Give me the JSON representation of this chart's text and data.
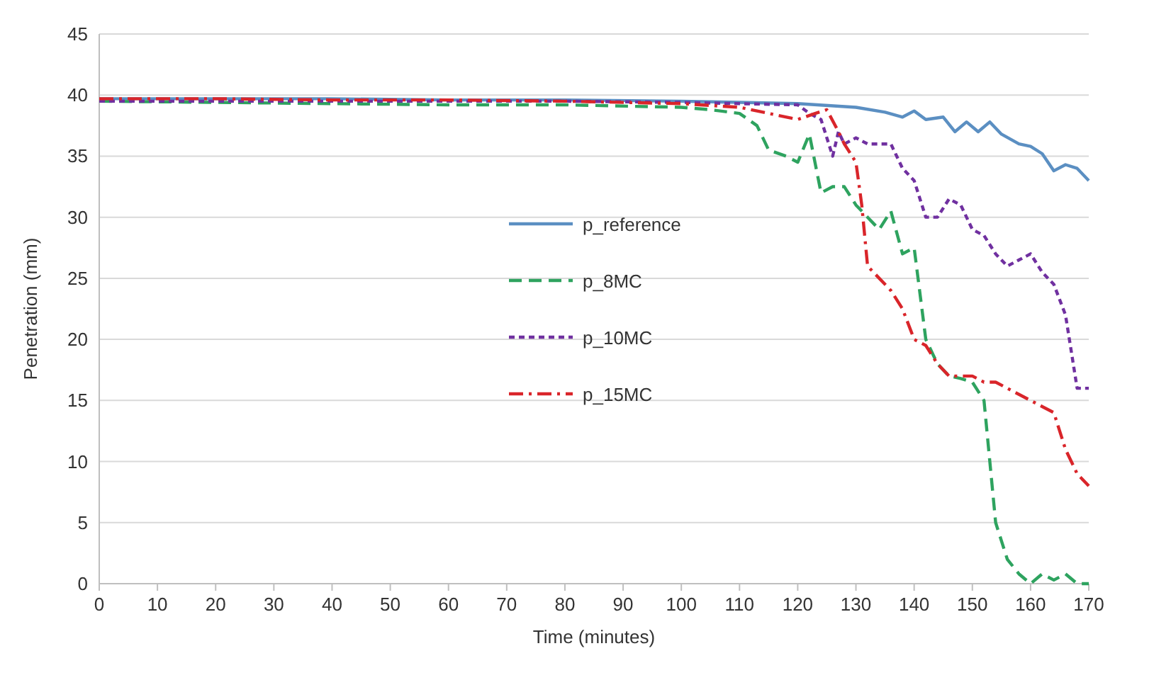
{
  "chart_data": {
    "type": "line",
    "xlabel": "Time (minutes)",
    "ylabel": "Penetration (mm)",
    "xlim": [
      0,
      170
    ],
    "ylim": [
      0,
      45
    ],
    "xticks": [
      0,
      10,
      20,
      30,
      40,
      50,
      60,
      70,
      80,
      90,
      100,
      110,
      120,
      130,
      140,
      150,
      160,
      170
    ],
    "yticks": [
      0,
      5,
      10,
      15,
      20,
      25,
      30,
      35,
      40,
      45
    ],
    "grid": "y",
    "legend": "center",
    "series": [
      {
        "name": "p_reference",
        "color": "#5b8fc2",
        "line_style": "solid",
        "x": [
          0,
          20,
          40,
          60,
          80,
          100,
          110,
          120,
          130,
          135,
          138,
          140,
          142,
          145,
          147,
          149,
          151,
          153,
          155,
          158,
          160,
          162,
          164,
          166,
          168,
          170
        ],
        "values": [
          39.7,
          39.7,
          39.7,
          39.6,
          39.6,
          39.5,
          39.4,
          39.3,
          39,
          38.6,
          38.2,
          38.7,
          38,
          38.2,
          37,
          37.8,
          37,
          37.8,
          36.8,
          36,
          35.8,
          35.2,
          33.8,
          34.3,
          34,
          33
        ]
      },
      {
        "name": "p_8MC",
        "color": "#2ea35f",
        "line_style": "dashed",
        "x": [
          0,
          20,
          40,
          60,
          80,
          100,
          105,
          110,
          113,
          115,
          118,
          120,
          122,
          124,
          126,
          128,
          130,
          132,
          134,
          136,
          138,
          140,
          142,
          144,
          146,
          148,
          150,
          152,
          153,
          154,
          156,
          158,
          160,
          162,
          164,
          166,
          168,
          170
        ],
        "values": [
          39.5,
          39.4,
          39.3,
          39.2,
          39.2,
          39,
          38.8,
          38.5,
          37.5,
          35.5,
          35,
          34.5,
          36.8,
          32,
          32.5,
          32.5,
          31,
          30,
          29,
          30.5,
          27,
          27.5,
          20,
          18,
          17,
          16.8,
          16.5,
          15,
          10,
          5,
          2,
          0.8,
          0,
          0.8,
          0.3,
          0.8,
          0,
          0
        ]
      },
      {
        "name": "p_10MC",
        "color": "#7030a0",
        "line_style": "dotted",
        "x": [
          0,
          20,
          40,
          60,
          80,
          100,
          110,
          120,
          122,
          124,
          126,
          127,
          128,
          130,
          132,
          136,
          138,
          140,
          142,
          144,
          146,
          148,
          150,
          152,
          154,
          156,
          158,
          160,
          162,
          164,
          166,
          168,
          170
        ],
        "values": [
          39.5,
          39.5,
          39.5,
          39.5,
          39.5,
          39.4,
          39.3,
          39.2,
          38.5,
          38,
          35,
          37,
          36,
          36.5,
          36,
          36,
          34,
          33,
          30,
          30,
          31.5,
          31,
          29,
          28.5,
          27,
          26,
          26.5,
          27,
          25.5,
          24.5,
          22,
          16,
          16
        ]
      },
      {
        "name": "p_15MC",
        "color": "#d9252a",
        "line_style": "dashdot",
        "x": [
          0,
          20,
          40,
          60,
          80,
          100,
          110,
          115,
          120,
          123,
          125,
          127,
          128,
          130,
          131,
          132,
          134,
          136,
          138,
          140,
          142,
          144,
          146,
          148,
          150,
          152,
          154,
          156,
          158,
          160,
          162,
          164,
          166,
          168,
          170
        ],
        "values": [
          39.7,
          39.7,
          39.6,
          39.6,
          39.5,
          39.3,
          39,
          38.5,
          38,
          38.5,
          38.8,
          37,
          36,
          34.5,
          31,
          26,
          25,
          24,
          22.5,
          20,
          19.5,
          18,
          17,
          17,
          17,
          16.5,
          16.5,
          16,
          15.5,
          15,
          14.5,
          14,
          11,
          9,
          8
        ]
      }
    ]
  }
}
